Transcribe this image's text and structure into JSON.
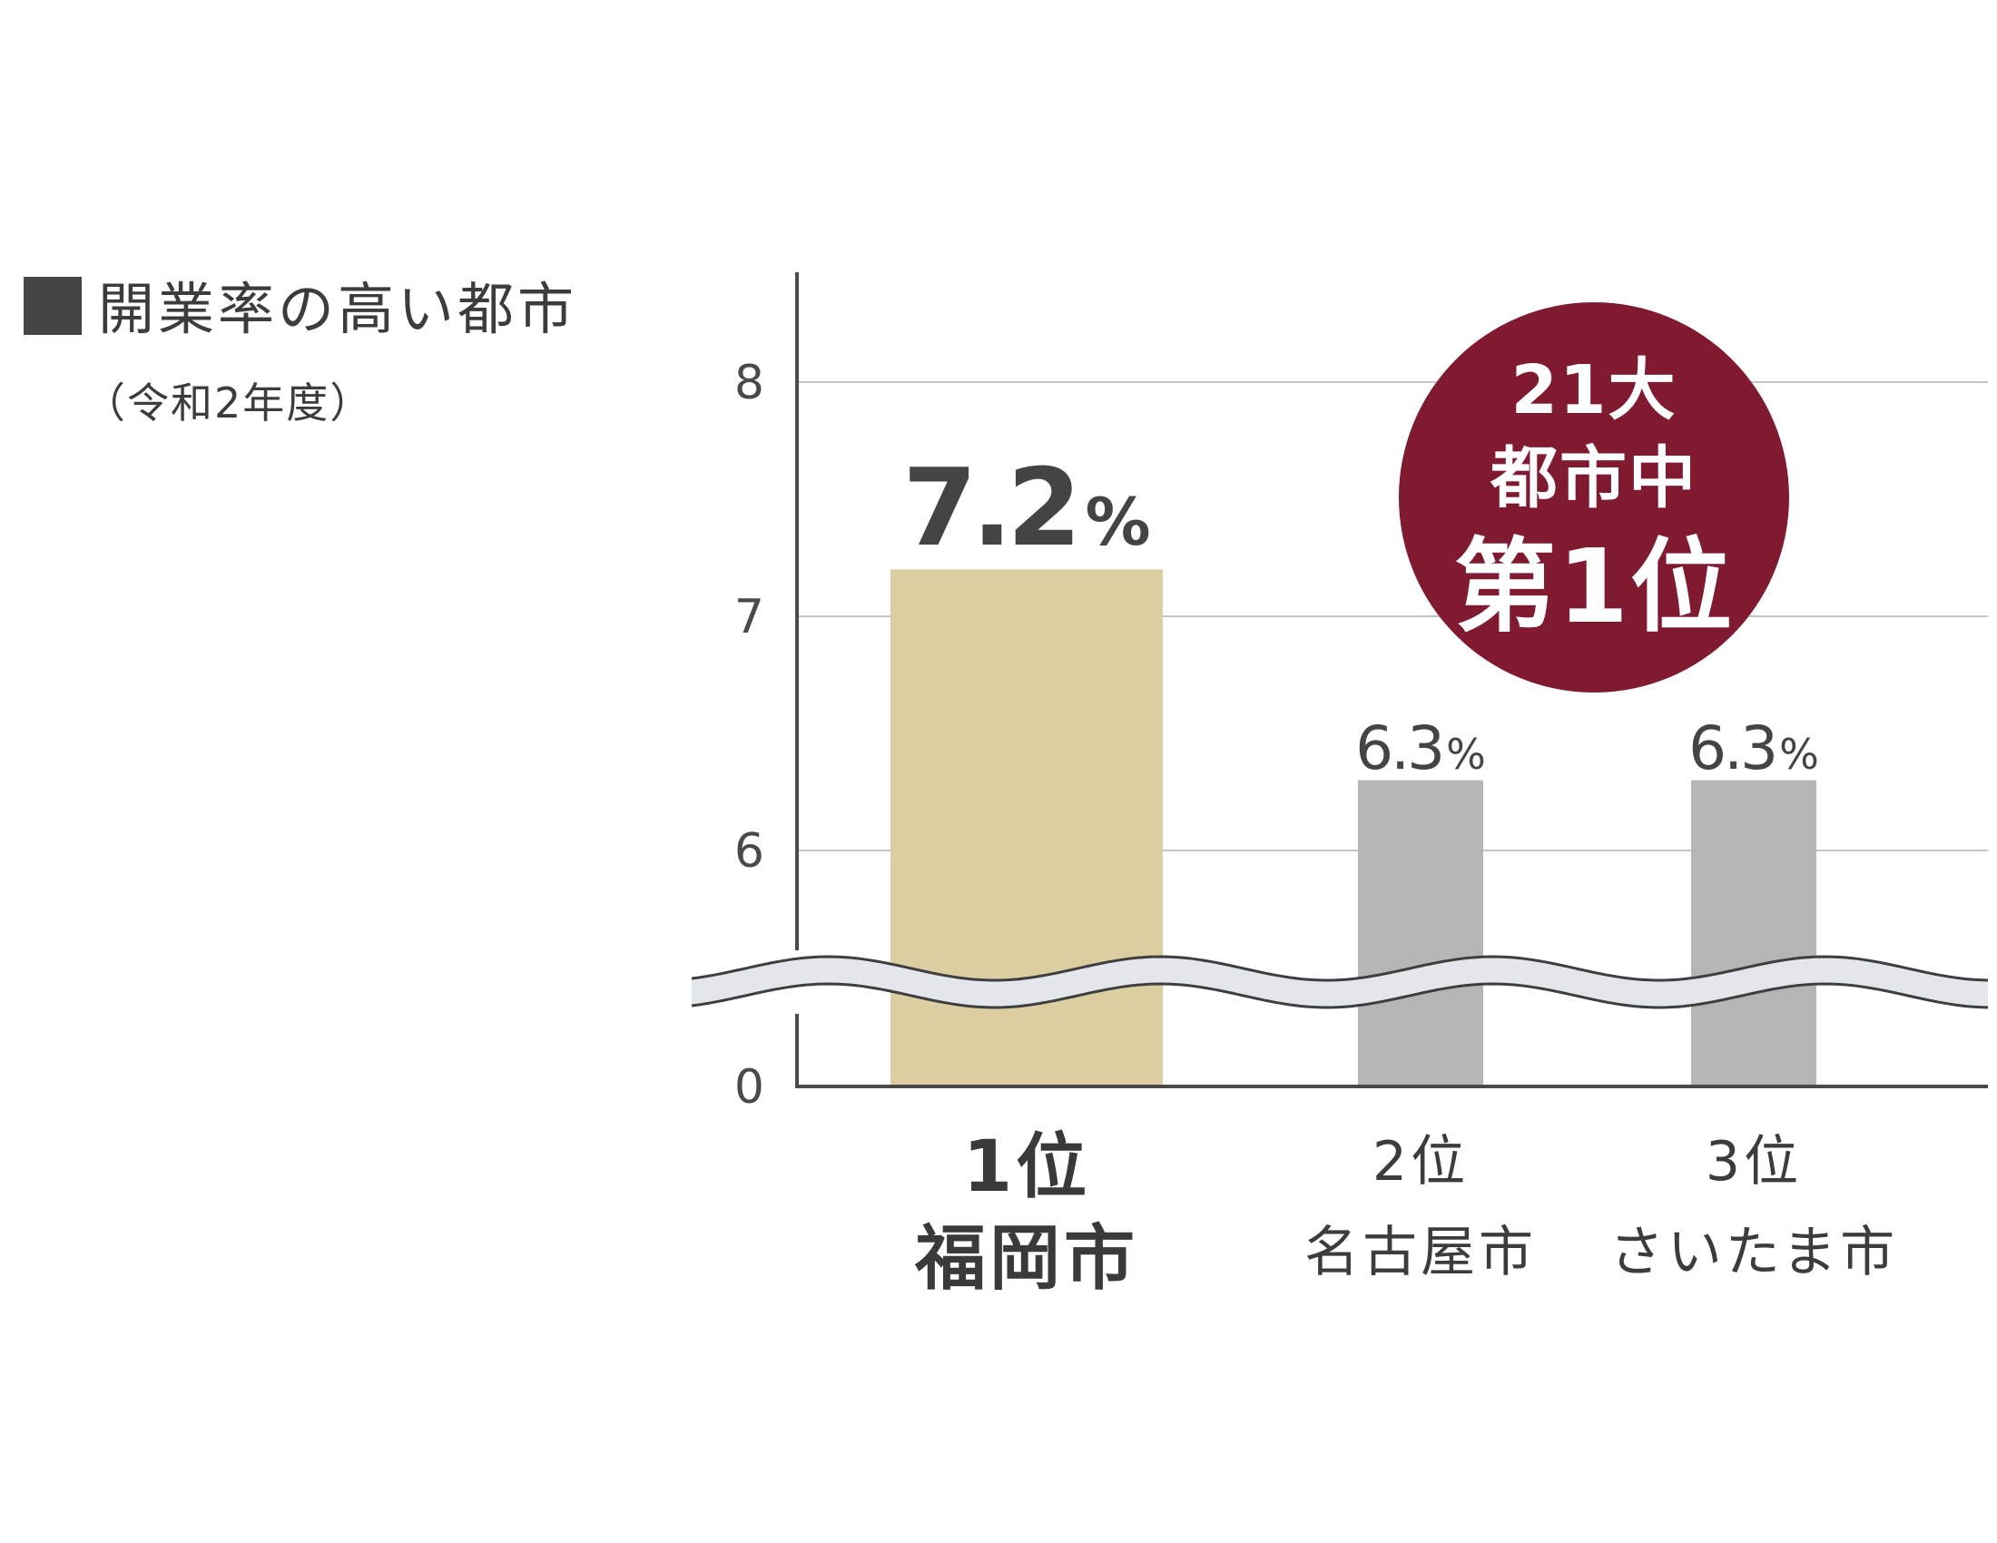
{
  "title": "開業率の高い都市",
  "subtitle": "（令和2年度）",
  "colors": {
    "highlight_bar": "#dbcfa1",
    "bar": "#b4b5b5",
    "axis": "#4a4a4a",
    "grid": "#c4c4c4",
    "badge": "#7f1a30",
    "break_band": "#e3e7eb"
  },
  "badge": {
    "line1": "21大",
    "line2": "都市中",
    "line3": "第1位"
  },
  "chart_data": {
    "type": "bar",
    "title": "開業率の高い都市",
    "subtitle": "（令和2年度）",
    "categories": [
      "福岡市",
      "名古屋市",
      "さいたま市"
    ],
    "ranks": [
      "1位",
      "2位",
      "3位"
    ],
    "values": [
      7.2,
      6.3,
      6.3
    ],
    "value_labels": [
      "7.2",
      "6.3",
      "6.3"
    ],
    "unit": "%",
    "highlight_index": 0,
    "y_ticks": [
      0,
      6,
      7,
      8
    ],
    "ylim": [
      0,
      8.5
    ],
    "axis_break": true,
    "grid": true,
    "xlabel": "",
    "ylabel": ""
  }
}
